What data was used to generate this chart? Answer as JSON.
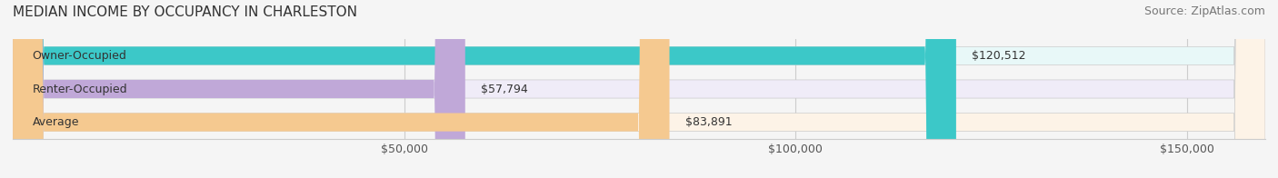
{
  "title": "MEDIAN INCOME BY OCCUPANCY IN CHARLESTON",
  "source": "Source: ZipAtlas.com",
  "categories": [
    "Owner-Occupied",
    "Renter-Occupied",
    "Average"
  ],
  "values": [
    120512,
    57794,
    83891
  ],
  "bar_colors": [
    "#3cc8c8",
    "#c0a8d8",
    "#f5c990"
  ],
  "bar_bg_colors": [
    "#e8f8f8",
    "#f0ecf8",
    "#fdf3e7"
  ],
  "value_labels": [
    "$120,512",
    "$57,794",
    "$83,891"
  ],
  "xlim": [
    0,
    160000
  ],
  "xticks": [
    0,
    50000,
    100000,
    150000
  ],
  "xtick_labels": [
    "",
    "$50,000",
    "$100,000",
    "$150,000"
  ],
  "background_color": "#f5f5f5",
  "bar_height": 0.55,
  "title_fontsize": 11,
  "label_fontsize": 9,
  "value_fontsize": 9,
  "source_fontsize": 9
}
